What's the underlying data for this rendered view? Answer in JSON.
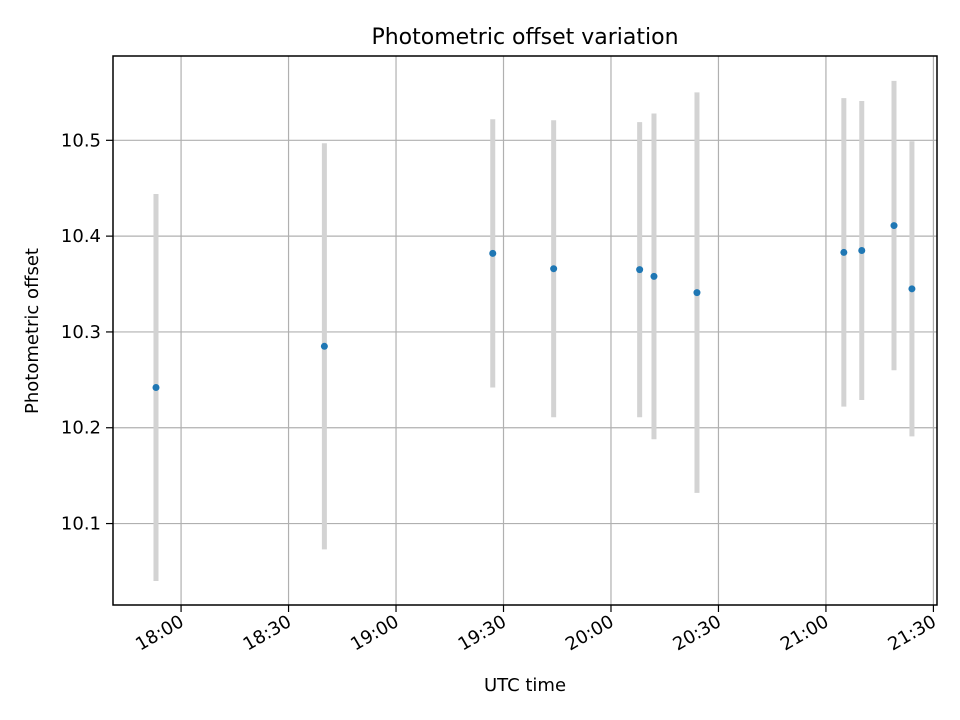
{
  "chart_data": {
    "type": "scatter",
    "title": "Photometric offset variation",
    "xlabel": "UTC time",
    "ylabel": "Photometric offset",
    "xlim": [
      "17:41",
      "21:31"
    ],
    "ylim": [
      10.015,
      10.588
    ],
    "x_ticks": [
      "18:00",
      "18:30",
      "19:00",
      "19:30",
      "20:00",
      "20:30",
      "21:00",
      "21:30"
    ],
    "y_ticks": [
      10.1,
      10.2,
      10.3,
      10.4,
      10.5
    ],
    "grid": true,
    "marker_color": "#1f77b4",
    "errorbar_color": "#d3d3d3",
    "points": [
      {
        "time": "17:53",
        "value": 10.242,
        "error": 0.202
      },
      {
        "time": "18:40",
        "value": 10.285,
        "error": 0.212
      },
      {
        "time": "19:27",
        "value": 10.382,
        "error": 0.14
      },
      {
        "time": "19:44",
        "value": 10.366,
        "error": 0.155
      },
      {
        "time": "20:08",
        "value": 10.365,
        "error": 0.154
      },
      {
        "time": "20:12",
        "value": 10.358,
        "error": 0.17
      },
      {
        "time": "20:24",
        "value": 10.341,
        "error": 0.209
      },
      {
        "time": "21:05",
        "value": 10.383,
        "error": 0.161
      },
      {
        "time": "21:10",
        "value": 10.385,
        "error": 0.156
      },
      {
        "time": "21:19",
        "value": 10.411,
        "error": 0.151
      },
      {
        "time": "21:24",
        "value": 10.345,
        "error": 0.154
      }
    ]
  }
}
